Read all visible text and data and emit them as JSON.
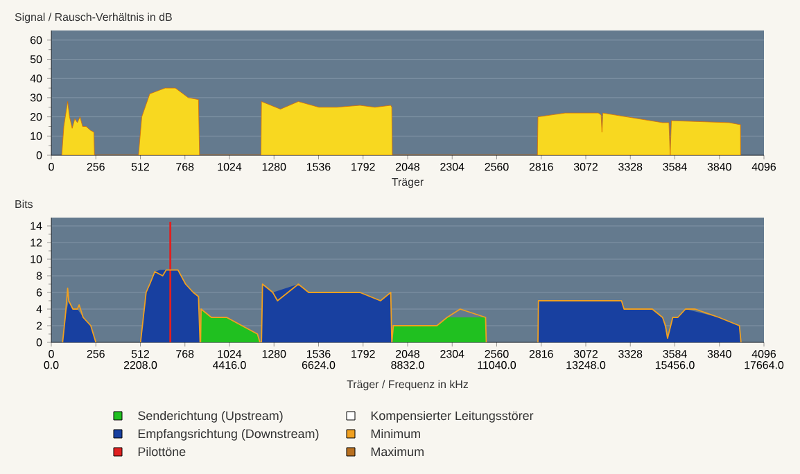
{
  "chart_data": [
    {
      "type": "area",
      "ylabel": "Signal / Rausch-Verhältnis in dB",
      "xlabel": "Träger",
      "xlim": [
        0,
        4096
      ],
      "xticks": [
        0,
        256,
        512,
        768,
        1024,
        1280,
        1536,
        1792,
        2048,
        2304,
        2560,
        2816,
        3072,
        3328,
        3584,
        3840,
        4096
      ],
      "ylim": [
        0,
        65
      ],
      "yticks": [
        0,
        10,
        20,
        30,
        40,
        50,
        60
      ],
      "grid": "y",
      "series": [
        {
          "color": "#f8d820",
          "x": [
            60,
            72,
            94,
            105,
            120,
            135,
            150,
            165,
            180,
            200,
            225,
            245,
            248,
            501,
            520,
            566,
            654,
            713,
            787,
            846,
            852,
            1205,
            1208,
            1317,
            1420,
            1538,
            1640,
            1774,
            1860,
            1951,
            1957,
            1960,
            2794,
            2797,
            2953,
            3144,
            3160,
            3165,
            3170,
            3307,
            3513,
            3550,
            3557,
            3564,
            3572,
            3896,
            3955,
            3961,
            3962
          ],
          "values": [
            0,
            15,
            28,
            20,
            14,
            19,
            17,
            20,
            15,
            15,
            13,
            12,
            0,
            0,
            20,
            32,
            35,
            35,
            30,
            29,
            0,
            0,
            28,
            24,
            28,
            25,
            25,
            26,
            25,
            26,
            25,
            0,
            0,
            20,
            22,
            22,
            21,
            12,
            22,
            20,
            17,
            17,
            0,
            18,
            18,
            17,
            16,
            16,
            0
          ]
        }
      ]
    },
    {
      "type": "area",
      "ylabel": "Bits",
      "xlabel": "Träger / Frequenz in kHz",
      "xlim": [
        0,
        4096
      ],
      "xticks": [
        0,
        256,
        512,
        768,
        1024,
        1280,
        1536,
        1792,
        2048,
        2304,
        2560,
        2816,
        3072,
        3328,
        3584,
        3840,
        4096
      ],
      "x2lim": [
        0,
        17664
      ],
      "x2ticks": [
        {
          "value": 0,
          "label": "0.0"
        },
        {
          "value": 2208,
          "label": "2208.0"
        },
        {
          "value": 4416,
          "label": "4416.0"
        },
        {
          "value": 6624,
          "label": "6624.0"
        },
        {
          "value": 8832,
          "label": "8832.0"
        },
        {
          "value": 11040,
          "label": "11040.0"
        },
        {
          "value": 13248,
          "label": "13248.0"
        },
        {
          "value": 15456,
          "label": "15456.0"
        },
        {
          "value": 17664,
          "label": "17664.0"
        }
      ],
      "ylim": [
        0,
        15
      ],
      "yticks": [
        0,
        2,
        4,
        6,
        8,
        10,
        12,
        14
      ],
      "grid": "y",
      "legend": "bottom",
      "series": [
        {
          "name": "Senderichtung (Upstream)",
          "color": "#20c020",
          "x": [
            858,
            861,
            920,
            1008,
            1096,
            1185,
            1199,
            1963,
            1966,
            2216,
            2275,
            2496,
            2500
          ],
          "values": [
            0,
            4,
            3,
            3,
            2,
            1,
            0,
            0,
            2,
            2,
            3,
            3,
            0
          ]
        },
        {
          "name": "Empfangsrichtung (Downstream)",
          "color": "#1840a0",
          "x": [
            65,
            80,
            100,
            124,
            150,
            183,
            227,
            256,
            513,
            545,
            566,
            595,
            625,
            728,
            772,
            816,
            846,
            855,
            1208,
            1214,
            1273,
            1420,
            1479,
            1774,
            1892,
            1951,
            1957,
            2797,
            2800,
            3277,
            3292,
            3454,
            3513,
            3542,
            3572,
            3601,
            3645,
            3837,
            3955,
            3964
          ],
          "values": [
            0,
            3,
            5,
            4,
            4,
            3,
            2,
            0,
            0,
            6,
            7,
            8.5,
            8.7,
            8.7,
            7,
            6,
            5.5,
            0,
            0,
            7,
            6,
            7,
            6,
            6,
            5,
            6,
            0,
            0,
            5,
            5,
            4,
            4,
            3,
            0.5,
            3,
            3,
            4,
            3,
            2,
            0
          ]
        },
        {
          "name": "Pilottöne",
          "type": "bar",
          "color": "#e02020",
          "x": [
            684
          ],
          "values": [
            14.5
          ]
        },
        {
          "name": "Kompensierter Leitungsstörer",
          "type": "line",
          "color": "#ffffff"
        },
        {
          "name": "Minimum",
          "type": "line",
          "color": "#f0a020",
          "x": [
            65,
            80,
            94,
            100,
            124,
            150,
            160,
            183,
            227,
            256,
            400,
            513,
            545,
            566,
            595,
            640,
            660,
            728,
            772,
            816,
            846,
            855,
            858,
            861,
            920,
            1008,
            1096,
            1185,
            1199,
            1208,
            1214,
            1273,
            1300,
            1420,
            1479,
            1774,
            1892,
            1951,
            1957,
            1966,
            2216,
            2275,
            2350,
            2496,
            2500,
            2650,
            2797,
            2800,
            3277,
            3292,
            3454,
            3513,
            3530,
            3542,
            3572,
            3601,
            3645,
            3700,
            3837,
            3955,
            3964
          ],
          "values": [
            0,
            3,
            6.5,
            5,
            4,
            4,
            4.5,
            3,
            2,
            0,
            null,
            0,
            6,
            7,
            8.5,
            8,
            8.7,
            8.7,
            7,
            6,
            5.5,
            0,
            0,
            4,
            3,
            3,
            2,
            1,
            0,
            0,
            7,
            6,
            5,
            7,
            6,
            6,
            5,
            6,
            0,
            2,
            2,
            3,
            4,
            3,
            0,
            null,
            0,
            5,
            5,
            4,
            4,
            3,
            2,
            0.5,
            3,
            3,
            4,
            4,
            3,
            2,
            0
          ]
        },
        {
          "name": "Maximum",
          "type": "line",
          "color": "#b87020"
        }
      ]
    }
  ]
}
